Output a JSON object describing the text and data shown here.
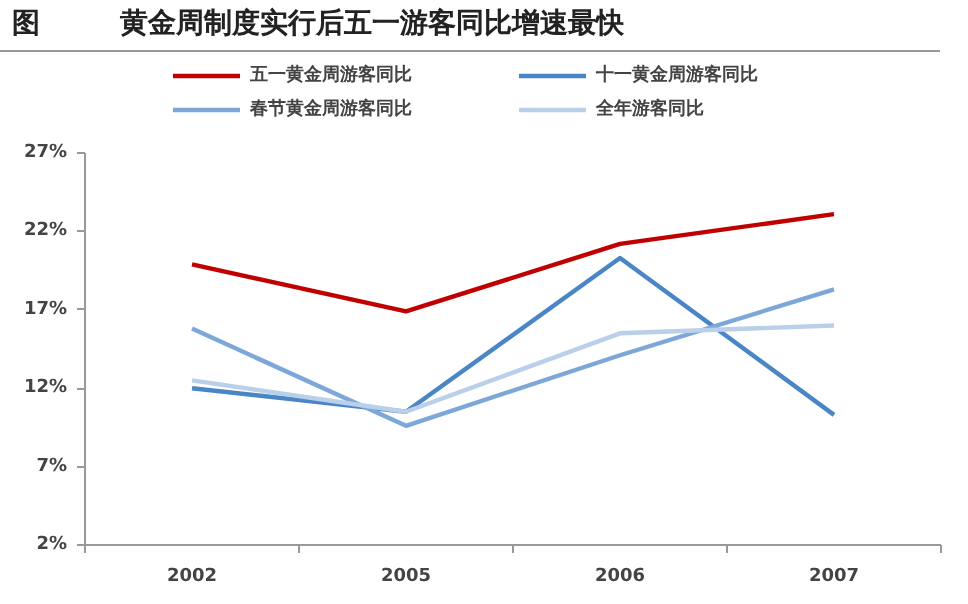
{
  "chart_data": {
    "type": "line",
    "title": "黄金周制度实行后五一游客同比增速最快",
    "annotations": [
      "图"
    ],
    "categories": [
      "2002",
      "2005",
      "2006",
      "2007"
    ],
    "series": [
      {
        "name": "五一黄金周游客同比",
        "color": "#c00000",
        "values": [
          19.9,
          16.9,
          21.2,
          23.1
        ]
      },
      {
        "name": "十一黄金周游客同比",
        "color": "#4a86c5",
        "values": [
          12.0,
          10.5,
          20.3,
          10.3
        ]
      },
      {
        "name": "春节黄金周游客同比",
        "color": "#7ca7d8",
        "values": [
          15.8,
          9.6,
          14.1,
          18.3
        ]
      },
      {
        "name": "全年游客同比",
        "color": "#b9cfea",
        "values": [
          12.5,
          10.5,
          15.5,
          16.0
        ]
      }
    ],
    "ylim": [
      2,
      27
    ],
    "yticks": [
      {
        "value": 2,
        "label": "2%"
      },
      {
        "value": 7,
        "label": "7%"
      },
      {
        "value": 12,
        "label": "12%"
      },
      {
        "value": 17,
        "label": "17%"
      },
      {
        "value": 22,
        "label": "22%"
      },
      {
        "value": 27,
        "label": "27%"
      }
    ],
    "grid": false,
    "legend": "top",
    "marker": "none",
    "line_style": "solid"
  }
}
